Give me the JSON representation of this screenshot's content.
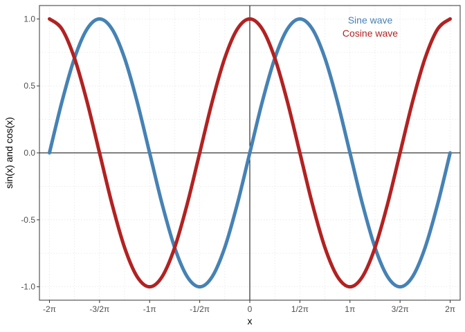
{
  "chart_data": {
    "type": "line",
    "xlabel": "x",
    "ylabel": "sin(x) and cos(x)",
    "xlim": [
      -6.597,
      6.597
    ],
    "ylim": [
      -1.1,
      1.1
    ],
    "x_ticks": [
      {
        "value": -6.2832,
        "label": "-2π"
      },
      {
        "value": -4.7124,
        "label": "-3/2π"
      },
      {
        "value": -3.1416,
        "label": "-1π"
      },
      {
        "value": -1.5708,
        "label": "-1/2π"
      },
      {
        "value": 0,
        "label": "0"
      },
      {
        "value": 1.5708,
        "label": "1/2π"
      },
      {
        "value": 3.1416,
        "label": "1π"
      },
      {
        "value": 4.7124,
        "label": "3/2π"
      },
      {
        "value": 6.2832,
        "label": "2π"
      }
    ],
    "y_ticks": [
      {
        "value": -1.0,
        "label": "-1.0"
      },
      {
        "value": -0.5,
        "label": "-0.5"
      },
      {
        "value": 0.0,
        "label": "0.0"
      },
      {
        "value": 0.5,
        "label": "0.5"
      },
      {
        "value": 1.0,
        "label": "1.0"
      }
    ],
    "grid": "dotted",
    "reference_lines": {
      "x": 0,
      "y": 0
    },
    "legend_position": "top-right",
    "series": [
      {
        "name": "Sine wave",
        "color": "#4682B4",
        "x": [
          -6.2832,
          -5.8905,
          -5.4978,
          -5.1051,
          -4.7124,
          -4.3197,
          -3.927,
          -3.5343,
          -3.1416,
          -2.7489,
          -2.3562,
          -1.9635,
          -1.5708,
          -1.1781,
          -0.7854,
          -0.3927,
          0,
          0.3927,
          0.7854,
          1.1781,
          1.5708,
          1.9635,
          2.3562,
          2.7489,
          3.1416,
          3.5343,
          3.927,
          4.3197,
          4.7124,
          5.1051,
          5.4978,
          5.8905,
          6.2832
        ],
        "values": [
          0,
          0.383,
          0.707,
          0.924,
          1,
          0.924,
          0.707,
          0.383,
          0,
          -0.383,
          -0.707,
          -0.924,
          -1,
          -0.924,
          -0.707,
          -0.383,
          0,
          0.383,
          0.707,
          0.924,
          1,
          0.924,
          0.707,
          0.383,
          0,
          -0.383,
          -0.707,
          -0.924,
          -1,
          -0.924,
          -0.707,
          -0.383,
          0
        ]
      },
      {
        "name": "Cosine wave",
        "color": "#B22222",
        "x": [
          -6.2832,
          -5.8905,
          -5.4978,
          -5.1051,
          -4.7124,
          -4.3197,
          -3.927,
          -3.5343,
          -3.1416,
          -2.7489,
          -2.3562,
          -1.9635,
          -1.5708,
          -1.1781,
          -0.7854,
          -0.3927,
          0,
          0.3927,
          0.7854,
          1.1781,
          1.5708,
          1.9635,
          2.3562,
          2.7489,
          3.1416,
          3.5343,
          3.927,
          4.3197,
          4.7124,
          5.1051,
          5.4978,
          5.8905,
          6.2832
        ],
        "values": [
          1,
          0.924,
          0.707,
          0.383,
          0,
          -0.383,
          -0.707,
          -0.924,
          -1,
          -0.924,
          -0.707,
          -0.383,
          0,
          0.383,
          0.707,
          0.924,
          1,
          0.924,
          0.707,
          0.383,
          0,
          -0.383,
          -0.707,
          -0.924,
          -1,
          -0.924,
          -0.707,
          -0.383,
          0,
          0.383,
          0.707,
          0.924,
          1
        ]
      }
    ]
  }
}
